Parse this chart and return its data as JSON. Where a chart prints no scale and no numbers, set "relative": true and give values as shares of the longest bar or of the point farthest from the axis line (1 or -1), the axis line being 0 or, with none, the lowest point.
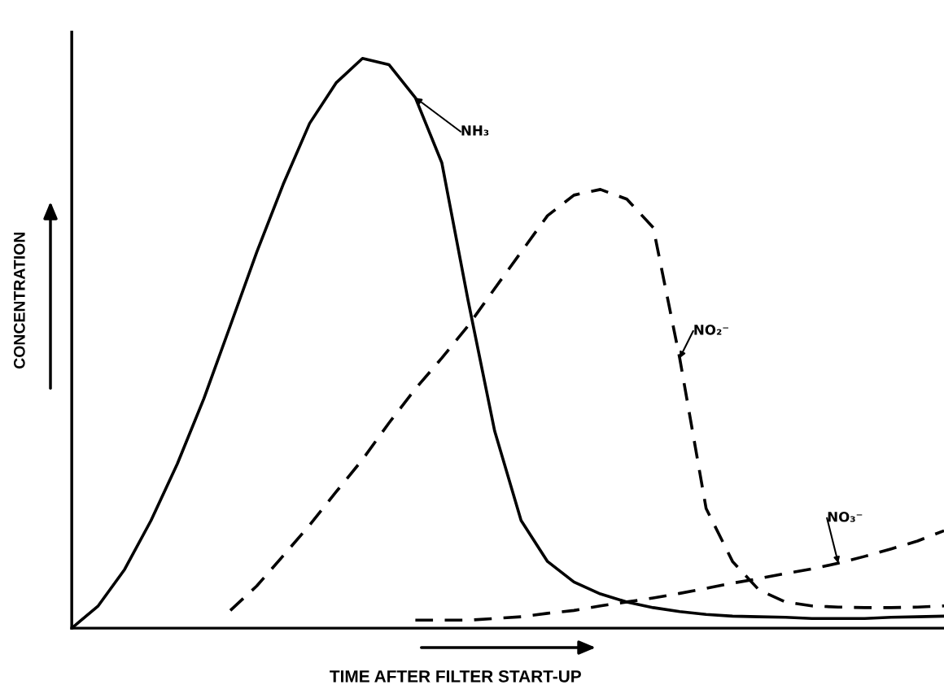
{
  "chart_data": {
    "type": "line",
    "relative": true,
    "xlabel": "TIME AFTER FILTER START-UP",
    "ylabel": "CONCENTRATION",
    "grid": false,
    "legend": false,
    "marker": "none",
    "categories": [
      null,
      null,
      null,
      null,
      null,
      null,
      null,
      null,
      null,
      null,
      null,
      null,
      null,
      null,
      null,
      null,
      null,
      null,
      null,
      null,
      null,
      null,
      null,
      null,
      null,
      null,
      null,
      null,
      null,
      null,
      null,
      null,
      null,
      null
    ],
    "series": [
      {
        "name": "NH₃",
        "color": "#000000",
        "line_style": "solid",
        "values": [
          0,
          0.039,
          0.103,
          0.189,
          0.289,
          0.403,
          0.531,
          0.66,
          0.779,
          0.886,
          0.957,
          1.0,
          0.989,
          0.931,
          0.817,
          0.574,
          0.346,
          0.189,
          0.117,
          0.081,
          0.06,
          0.046,
          0.036,
          0.029,
          0.024,
          0.021,
          0.02,
          0.019,
          0.017,
          0.017,
          0.017,
          0.019,
          0.02,
          0.021
        ]
      },
      {
        "name": "NO₂⁻",
        "color": "#000000",
        "line_style": "dashed",
        "values": [
          null,
          null,
          null,
          null,
          null,
          null,
          0.031,
          0.074,
          0.127,
          0.181,
          0.239,
          0.296,
          0.36,
          0.42,
          0.474,
          0.531,
          0.596,
          0.66,
          0.724,
          0.76,
          0.77,
          0.753,
          0.703,
          0.474,
          0.21,
          0.117,
          0.067,
          0.046,
          0.039,
          0.037,
          0.036,
          0.036,
          0.037,
          0.039
        ]
      },
      {
        "name": "NO₃⁻",
        "color": "#000000",
        "line_style": "dashed",
        "values": [
          null,
          null,
          null,
          null,
          null,
          null,
          null,
          null,
          null,
          null,
          null,
          null,
          null,
          0.014,
          0.014,
          0.014,
          0.017,
          0.02,
          0.026,
          0.031,
          0.039,
          0.046,
          0.053,
          0.061,
          0.07,
          0.079,
          0.087,
          0.096,
          0.104,
          0.114,
          0.126,
          0.139,
          0.153,
          0.171
        ]
      }
    ]
  }
}
